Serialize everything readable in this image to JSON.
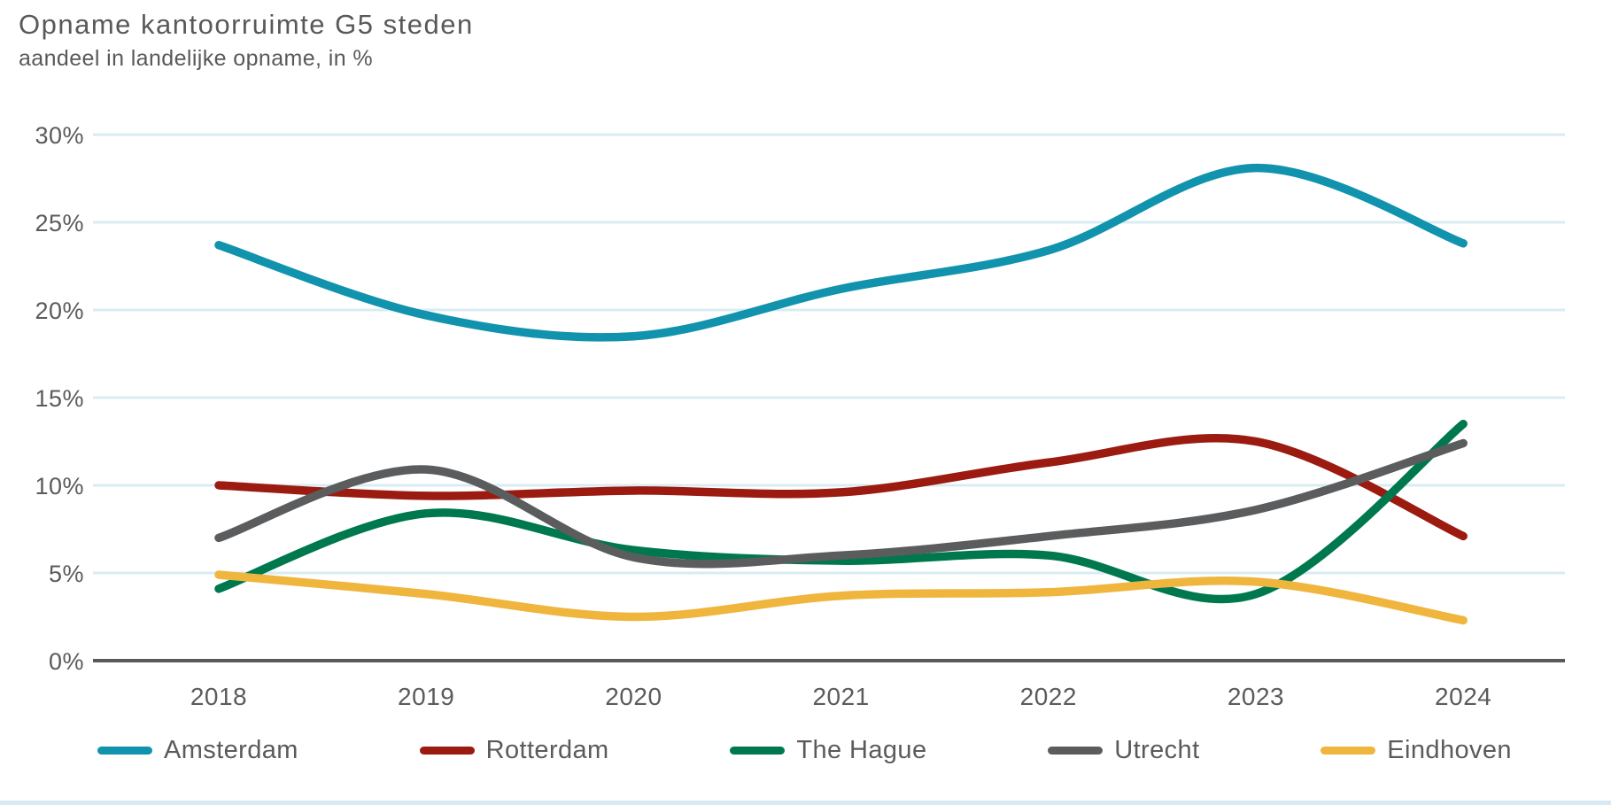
{
  "title": "Opname kantoorruimte G5 steden",
  "subtitle": "aandeel in landelijke opname, in %",
  "colors": {
    "grid": "#d9ecf3",
    "axis": "#58595b",
    "text": "#5a5b5d",
    "bottom_strip": "#d9e9f2"
  },
  "chart_data": {
    "type": "line",
    "title": "Opname kantoorruimte G5 steden",
    "subtitle": "aandeel in landelijke opname, in %",
    "x": [
      "2018",
      "2019",
      "2020",
      "2021",
      "2022",
      "2023",
      "2024"
    ],
    "series": [
      {
        "name": "Amsterdam",
        "color": "#1193ae",
        "values": [
          23.7,
          19.7,
          18.5,
          21.2,
          23.4,
          28.1,
          23.8
        ]
      },
      {
        "name": "Rotterdam",
        "color": "#9b1b10",
        "values": [
          10.0,
          9.4,
          9.7,
          9.6,
          11.3,
          12.5,
          7.1
        ]
      },
      {
        "name": "The Hague",
        "color": "#00784e",
        "values": [
          4.1,
          8.4,
          6.3,
          5.7,
          6.0,
          3.8,
          13.5
        ]
      },
      {
        "name": "Utrecht",
        "color": "#5b5c5e",
        "values": [
          7.0,
          10.9,
          5.9,
          6.0,
          7.1,
          8.6,
          12.4
        ]
      },
      {
        "name": "Eindhoven",
        "color": "#efb53d",
        "values": [
          4.9,
          3.8,
          2.5,
          3.7,
          3.9,
          4.5,
          2.3
        ]
      }
    ],
    "ylim": [
      0,
      30
    ],
    "yticks": [
      "30%",
      "25%",
      "20%",
      "15%",
      "10%",
      "5%",
      "0%"
    ],
    "ytick_values": [
      30,
      25,
      20,
      15,
      10,
      5,
      0
    ],
    "grid": "horizontal",
    "legend_position": "bottom"
  },
  "legend": {
    "items": [
      {
        "label": "Amsterdam",
        "color": "#1193ae"
      },
      {
        "label": "Rotterdam",
        "color": "#9b1b10"
      },
      {
        "label": "The Hague",
        "color": "#00784e"
      },
      {
        "label": "Utrecht",
        "color": "#5b5c5e"
      },
      {
        "label": "Eindhoven",
        "color": "#efb53d"
      }
    ]
  }
}
